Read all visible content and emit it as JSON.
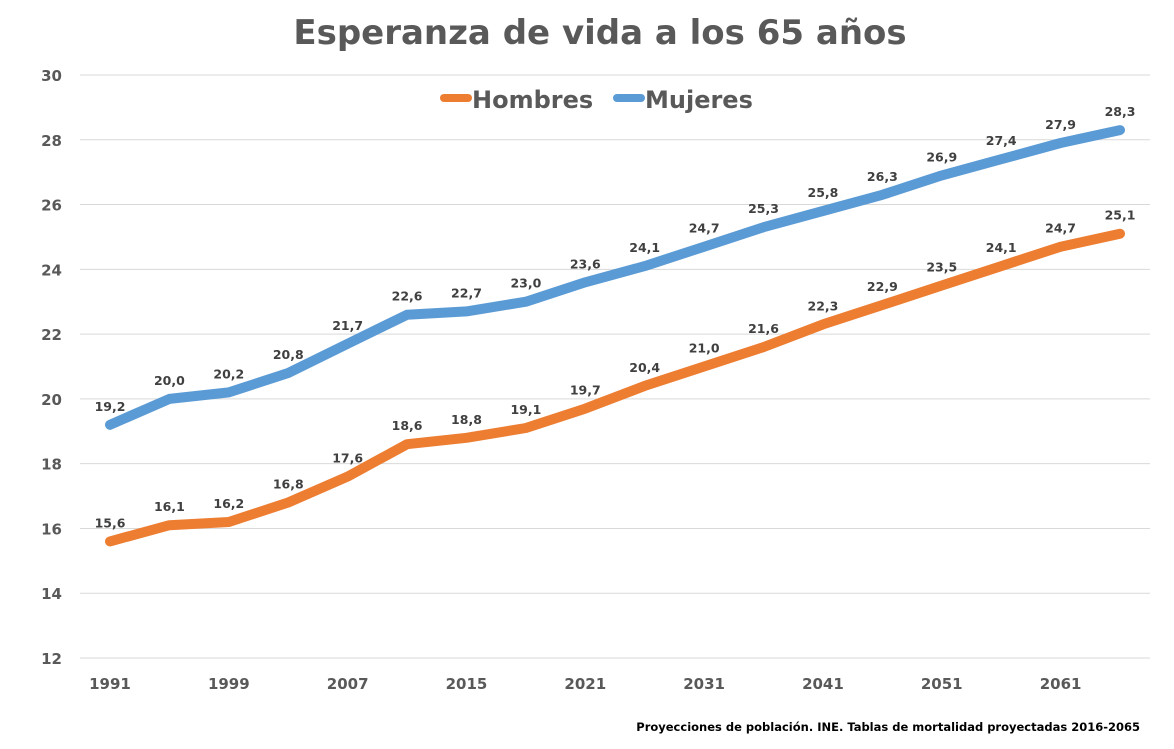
{
  "chart_data": {
    "type": "line",
    "title": "Esperanza de vida a los 65 años",
    "xlabel": "",
    "ylabel": "",
    "categories": [
      "1991",
      "",
      "1999",
      "",
      "2007",
      "",
      "2015",
      "",
      "2021",
      "",
      "2031",
      "",
      "2041",
      "",
      "2051",
      "",
      "2061",
      ""
    ],
    "ylim": [
      12,
      30
    ],
    "yticks": [
      12,
      14,
      16,
      18,
      20,
      22,
      24,
      26,
      28,
      30
    ],
    "grid": true,
    "legend": "top-center",
    "series": [
      {
        "name": "Hombres",
        "color": "#ED7D31",
        "values": [
          15.6,
          16.1,
          16.2,
          16.8,
          17.6,
          18.6,
          18.8,
          19.1,
          19.7,
          20.4,
          21.0,
          21.6,
          22.3,
          22.9,
          23.5,
          24.1,
          24.7,
          25.1
        ],
        "labels": [
          "15,6",
          "16,1",
          "16,2",
          "16,8",
          "17,6",
          "18,6",
          "18,8",
          "19,1",
          "19,7",
          "20,4",
          "21,0",
          "21,6",
          "22,3",
          "22,9",
          "23,5",
          "24,1",
          "24,7",
          "25,1"
        ]
      },
      {
        "name": "Mujeres",
        "color": "#5B9BD5",
        "values": [
          19.2,
          20.0,
          20.2,
          20.8,
          21.7,
          22.6,
          22.7,
          23.0,
          23.6,
          24.1,
          24.7,
          25.3,
          25.8,
          26.3,
          26.9,
          27.4,
          27.9,
          28.3
        ],
        "labels": [
          "19,2",
          "20,0",
          "20,2",
          "20,8",
          "21,7",
          "22,6",
          "22,7",
          "23,0",
          "23,6",
          "24,1",
          "24,7",
          "25,3",
          "25,8",
          "26,3",
          "26,9",
          "27,4",
          "27,9",
          "28,3"
        ]
      }
    ],
    "source_note": "Proyecciones de población. INE. Tablas de mortalidad proyectadas 2016-2065"
  }
}
